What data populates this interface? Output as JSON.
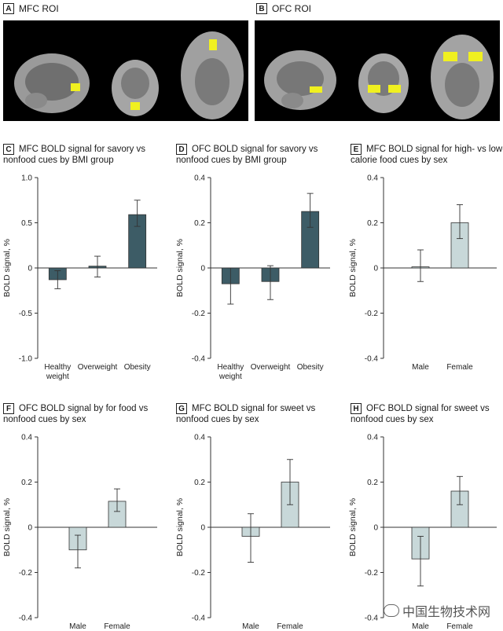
{
  "panels_top": [
    {
      "badge": "A",
      "title": "MFC ROI"
    },
    {
      "badge": "B",
      "title": "OFC ROI"
    }
  ],
  "colors": {
    "dark": "#3d5c66",
    "light": "#c8d8d9",
    "roi": "#f0f020",
    "bg_brain": "#000000"
  },
  "watermark": "中国生物技术网",
  "chart_data": [
    {
      "badge": "C",
      "type": "bar",
      "title": "MFC BOLD signal for savory vs nonfood cues by BMI group",
      "ylabel": "BOLD signal, %",
      "ylim": [
        -1.0,
        1.0
      ],
      "yticks": [
        "1.0",
        "0.5",
        "0",
        "-0.5",
        "-1.0"
      ],
      "ytick_values": [
        1.0,
        0.5,
        0,
        -0.5,
        -1.0
      ],
      "categories": [
        [
          "Healthy",
          "weight"
        ],
        [
          "Overweight"
        ],
        [
          "Obesity"
        ]
      ],
      "values": [
        -0.13,
        0.02,
        0.59
      ],
      "err_low": [
        -0.23,
        -0.1,
        0.46
      ],
      "err_high": [
        -0.03,
        0.13,
        0.75
      ],
      "color": "dark"
    },
    {
      "badge": "D",
      "type": "bar",
      "title": "OFC BOLD signal for savory vs nonfood cues by BMI group",
      "ylabel": "BOLD signal, %",
      "ylim": [
        -0.4,
        0.4
      ],
      "yticks": [
        "0.4",
        "0.2",
        "0",
        "-0.2",
        "-0.4"
      ],
      "ytick_values": [
        0.4,
        0.2,
        0,
        -0.2,
        -0.4
      ],
      "categories": [
        [
          "Healthy",
          "weight"
        ],
        [
          "Overweight"
        ],
        [
          "Obesity"
        ]
      ],
      "values": [
        -0.07,
        -0.06,
        0.25
      ],
      "err_low": [
        -0.16,
        -0.14,
        0.18
      ],
      "err_high": [
        0.0,
        0.01,
        0.33
      ],
      "color": "dark"
    },
    {
      "badge": "E",
      "type": "bar",
      "title": "MFC BOLD signal for high- vs low-calorie food cues by sex",
      "ylabel": "BOLD signal, %",
      "ylim": [
        -0.4,
        0.4
      ],
      "yticks": [
        "0.4",
        "0.2",
        "0",
        "-0.2",
        "-0.4"
      ],
      "ytick_values": [
        0.4,
        0.2,
        0,
        -0.2,
        -0.4
      ],
      "categories": [
        [
          "Male"
        ],
        [
          "Female"
        ]
      ],
      "values": [
        0.005,
        0.2
      ],
      "err_low": [
        -0.06,
        0.13
      ],
      "err_high": [
        0.08,
        0.28
      ],
      "color": "light"
    },
    {
      "badge": "F",
      "type": "bar",
      "title": "OFC BOLD signal by for food vs nonfood cues by sex",
      "ylabel": "BOLD signal, %",
      "ylim": [
        -0.4,
        0.4
      ],
      "yticks": [
        "0.4",
        "0.2",
        "0",
        "-0.2",
        "-0.4"
      ],
      "ytick_values": [
        0.4,
        0.2,
        0,
        -0.2,
        -0.4
      ],
      "categories": [
        [
          "Male"
        ],
        [
          "Female"
        ]
      ],
      "values": [
        -0.1,
        0.115
      ],
      "err_low": [
        -0.18,
        0.07
      ],
      "err_high": [
        -0.035,
        0.17
      ],
      "color": "light"
    },
    {
      "badge": "G",
      "type": "bar",
      "title": "MFC BOLD signal for sweet vs nonfood cues by sex",
      "ylabel": "BOLD signal, %",
      "ylim": [
        -0.4,
        0.4
      ],
      "yticks": [
        "0.4",
        "0.2",
        "0",
        "-0.2",
        "-0.4"
      ],
      "ytick_values": [
        0.4,
        0.2,
        0,
        -0.2,
        -0.4
      ],
      "categories": [
        [
          "Male"
        ],
        [
          "Female"
        ]
      ],
      "values": [
        -0.04,
        0.2
      ],
      "err_low": [
        -0.155,
        0.1
      ],
      "err_high": [
        0.06,
        0.3
      ],
      "color": "light"
    },
    {
      "badge": "H",
      "type": "bar",
      "title": "OFC BOLD signal for sweet vs nonfood cues by sex",
      "ylabel": "BOLD signal, %",
      "ylim": [
        -0.4,
        0.4
      ],
      "yticks": [
        "0.4",
        "0.2",
        "0",
        "-0.2",
        "-0.4"
      ],
      "ytick_values": [
        0.4,
        0.2,
        0,
        -0.2,
        -0.4
      ],
      "categories": [
        [
          "Male"
        ],
        [
          "Female"
        ]
      ],
      "values": [
        -0.14,
        0.16
      ],
      "err_low": [
        -0.26,
        0.1
      ],
      "err_high": [
        -0.04,
        0.225
      ],
      "color": "light"
    }
  ]
}
